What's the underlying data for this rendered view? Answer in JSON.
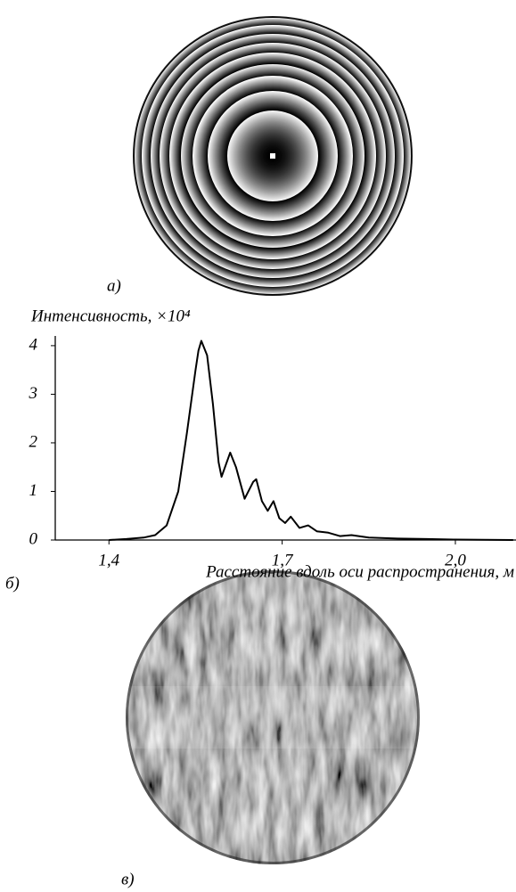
{
  "panel_labels": [
    "а)",
    "б)",
    "в)"
  ],
  "chart_data": {
    "type": "line",
    "y_label": "Интенсивность, ×10⁴",
    "x_label": "Расстояние вдоль оси распространения, м",
    "x": [
      1.4,
      1.43,
      1.46,
      1.48,
      1.5,
      1.52,
      1.535,
      1.55,
      1.555,
      1.56,
      1.57,
      1.58,
      1.59,
      1.595,
      1.61,
      1.62,
      1.635,
      1.65,
      1.655,
      1.665,
      1.675,
      1.685,
      1.695,
      1.705,
      1.715,
      1.73,
      1.745,
      1.76,
      1.78,
      1.8,
      1.82,
      1.85,
      1.9,
      1.95,
      2.0,
      2.1
    ],
    "values": [
      0,
      0.02,
      0.05,
      0.1,
      0.3,
      1.0,
      2.2,
      3.5,
      3.9,
      4.1,
      3.8,
      2.8,
      1.6,
      1.3,
      1.8,
      1.5,
      0.85,
      1.2,
      1.25,
      0.8,
      0.6,
      0.8,
      0.45,
      0.35,
      0.48,
      0.25,
      0.3,
      0.18,
      0.15,
      0.08,
      0.1,
      0.05,
      0.03,
      0.02,
      0.01,
      0
    ],
    "color": "#000000",
    "xlim": [
      1.307,
      2.105
    ],
    "ylim": [
      0,
      4.2
    ],
    "xticks": [
      {
        "value": 1.4,
        "label": "1,4"
      },
      {
        "value": 1.7,
        "label": "1,7"
      },
      {
        "value": 2.0,
        "label": "2,0"
      }
    ],
    "yticks": [
      0,
      1,
      2,
      3,
      4
    ],
    "grid": false
  }
}
